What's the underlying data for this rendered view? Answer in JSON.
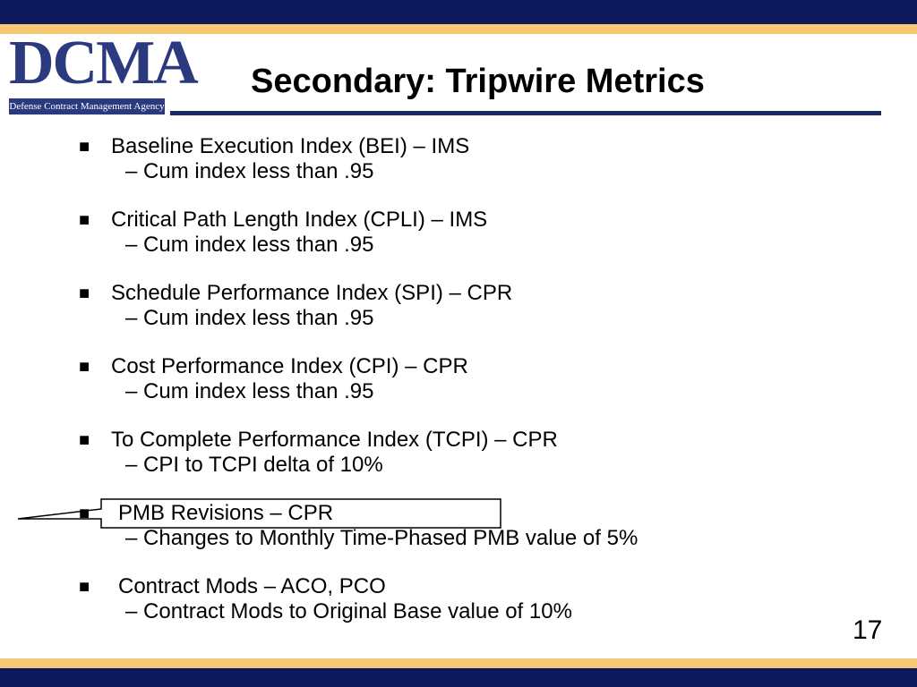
{
  "logo": {
    "wordmark": "DCMA",
    "subtitle": "Defense Contract Management Agency"
  },
  "slide": {
    "title": "Secondary: Tripwire Metrics",
    "page_number": "17"
  },
  "items": [
    {
      "main": "Baseline Execution Index (BEI) – IMS",
      "sub": "– Cum index less than .95"
    },
    {
      "main": "Critical Path Length Index (CPLI) – IMS",
      "sub": "– Cum index less than .95"
    },
    {
      "main": "Schedule Performance Index (SPI) – CPR",
      "sub": "– Cum index less than .95"
    },
    {
      "main": "Cost Performance Index (CPI) – CPR",
      "sub": "– Cum index less than .95"
    },
    {
      "main": "To Complete Performance Index (TCPI) – CPR",
      "sub": "– CPI to TCPI delta of 10%"
    },
    {
      "main": "PMB Revisions – CPR",
      "sub": "– Changes to Monthly Time-Phased PMB value of 5%"
    },
    {
      "main": "Contract Mods – ACO, PCO",
      "sub": "– Contract Mods to Original Base value of 10%"
    }
  ],
  "colors": {
    "navy": "#0c1a5c",
    "gold": "#f6c774",
    "logo_blue": "#2b3a7e"
  }
}
